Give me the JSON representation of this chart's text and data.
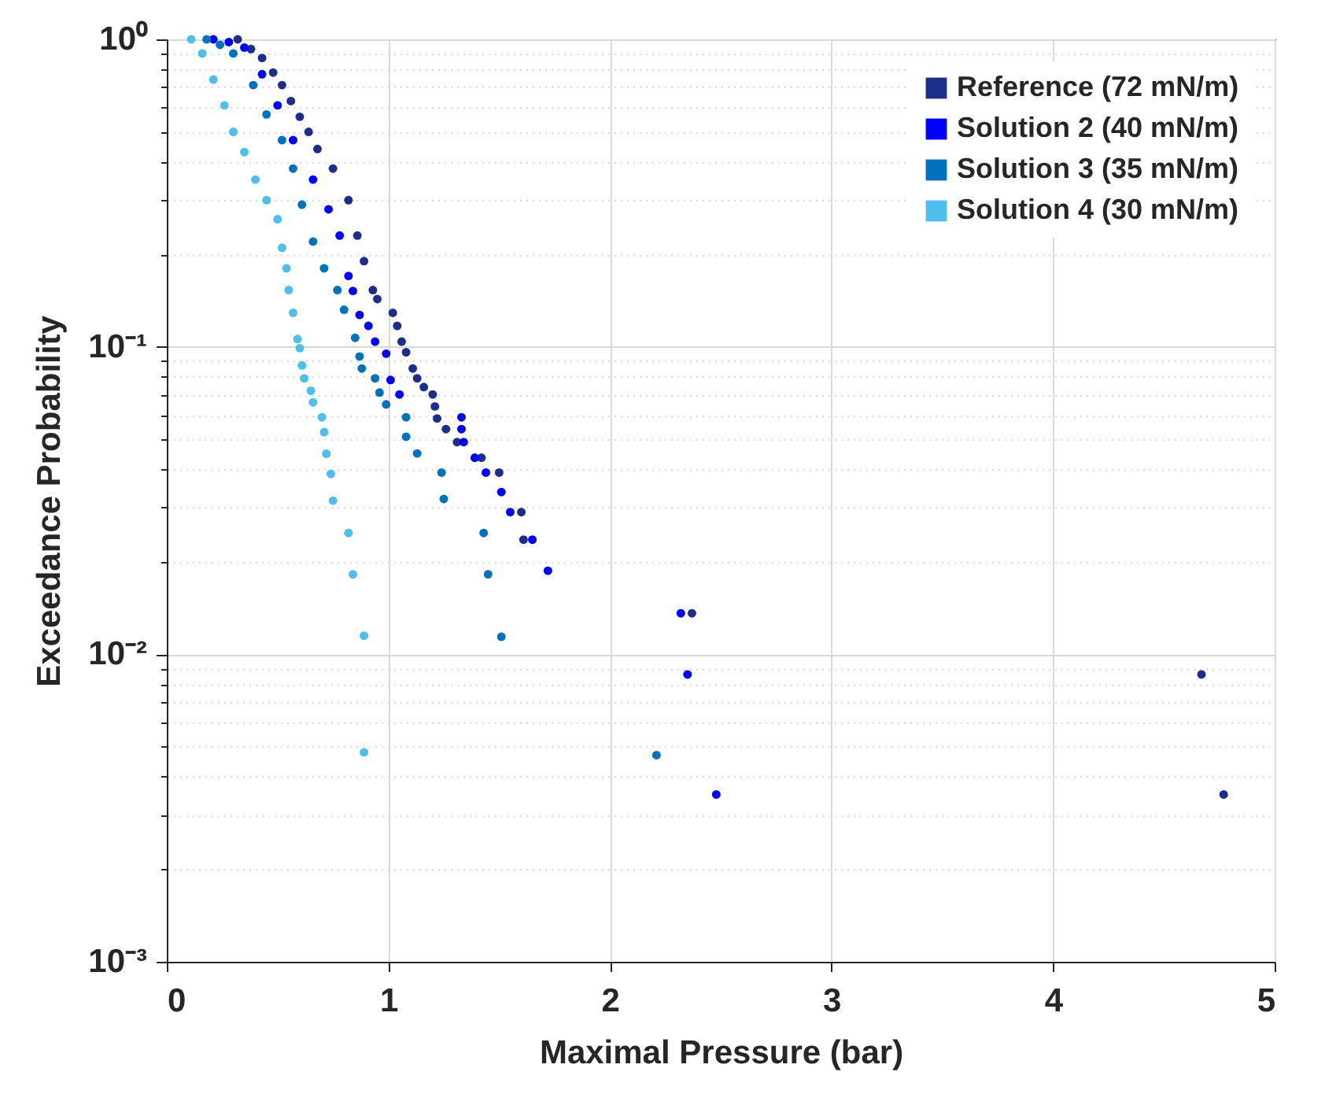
{
  "chart_data": {
    "type": "scatter",
    "xlabel": "Maximal Pressure (bar)",
    "ylabel": "Exceedance Probability",
    "log": "y",
    "grid": true,
    "legend": "top right",
    "marker": "circle",
    "xlim": [
      0,
      5
    ],
    "xticks": [
      0,
      1,
      2,
      3,
      4,
      5
    ],
    "ylim": [
      0.001,
      1
    ],
    "yticks": [
      {
        "value": 0.001,
        "label": "10⁻³"
      },
      {
        "value": 0.002,
        "label": null
      },
      {
        "value": 0.003,
        "label": null
      },
      {
        "value": 0.004,
        "label": null
      },
      {
        "value": 0.005,
        "label": null
      },
      {
        "value": 0.006,
        "label": null
      },
      {
        "value": 0.007,
        "label": null
      },
      {
        "value": 0.008,
        "label": null
      },
      {
        "value": 0.009,
        "label": null
      },
      {
        "value": 0.01,
        "label": "10⁻²"
      },
      {
        "value": 0.02,
        "label": null
      },
      {
        "value": 0.03,
        "label": null
      },
      {
        "value": 0.04,
        "label": null
      },
      {
        "value": 0.05,
        "label": null
      },
      {
        "value": 0.06,
        "label": null
      },
      {
        "value": 0.07,
        "label": null
      },
      {
        "value": 0.08,
        "label": null
      },
      {
        "value": 0.09,
        "label": null
      },
      {
        "value": 0.1,
        "label": "10⁻¹"
      },
      {
        "value": 0.2,
        "label": null
      },
      {
        "value": 0.3,
        "label": null
      },
      {
        "value": 0.4,
        "label": null
      },
      {
        "value": 0.5,
        "label": null
      },
      {
        "value": 0.6,
        "label": null
      },
      {
        "value": 0.7,
        "label": null
      },
      {
        "value": 0.8,
        "label": null
      },
      {
        "value": 0.9,
        "label": null
      },
      {
        "value": 1,
        "label": "10⁰"
      }
    ],
    "series": [
      {
        "name": "Reference (72 mN/m)",
        "color": "#1c2e8a",
        "x": [
          0.32,
          0.38,
          0.43,
          0.48,
          0.52,
          0.56,
          0.6,
          0.64,
          0.68,
          0.75,
          0.82,
          0.86,
          0.89,
          0.93,
          0.95,
          1.02,
          1.04,
          1.06,
          1.08,
          1.11,
          1.13,
          1.16,
          1.2,
          1.21,
          1.22,
          1.26,
          1.31,
          1.42,
          1.5,
          1.6,
          1.61,
          2.37,
          4.67,
          4.77
        ],
        "values": [
          1.0,
          0.93,
          0.87,
          0.78,
          0.71,
          0.63,
          0.56,
          0.5,
          0.44,
          0.38,
          0.3,
          0.23,
          0.19,
          0.153,
          0.143,
          0.129,
          0.117,
          0.104,
          0.096,
          0.085,
          0.079,
          0.074,
          0.07,
          0.064,
          0.0585,
          0.054,
          0.049,
          0.0436,
          0.039,
          0.029,
          0.0236,
          0.0136,
          0.0086,
          0.0035
        ]
      },
      {
        "name": "Solution 2 (40 mN/m)",
        "color": "#0000ff",
        "x": [
          0.21,
          0.28,
          0.35,
          0.43,
          0.5,
          0.57,
          0.66,
          0.73,
          0.78,
          0.82,
          0.84,
          0.87,
          0.91,
          0.94,
          0.99,
          1.01,
          1.05,
          1.33,
          1.33,
          1.34,
          1.39,
          1.44,
          1.51,
          1.55,
          1.65,
          1.72,
          2.32,
          2.35,
          2.48
        ],
        "values": [
          1.0,
          0.98,
          0.94,
          0.77,
          0.61,
          0.47,
          0.35,
          0.28,
          0.23,
          0.17,
          0.152,
          0.127,
          0.117,
          0.104,
          0.095,
          0.078,
          0.07,
          0.059,
          0.054,
          0.049,
          0.0436,
          0.039,
          0.0337,
          0.029,
          0.0236,
          0.0187,
          0.0136,
          0.0086,
          0.0035
        ]
      },
      {
        "name": "Solution 3 (35 mN/m)",
        "color": "#0072bd",
        "x": [
          0.18,
          0.24,
          0.3,
          0.39,
          0.45,
          0.52,
          0.57,
          0.61,
          0.66,
          0.71,
          0.77,
          0.8,
          0.85,
          0.87,
          0.88,
          0.94,
          0.96,
          0.99,
          1.08,
          1.08,
          1.13,
          1.24,
          1.25,
          1.43,
          1.45,
          1.51,
          2.21
        ],
        "values": [
          1.0,
          0.96,
          0.9,
          0.71,
          0.57,
          0.47,
          0.38,
          0.29,
          0.22,
          0.18,
          0.153,
          0.132,
          0.107,
          0.093,
          0.085,
          0.079,
          0.071,
          0.065,
          0.059,
          0.051,
          0.045,
          0.039,
          0.032,
          0.0248,
          0.0182,
          0.0114,
          0.0047
        ]
      },
      {
        "name": "Solution 4 (30 mN/m)",
        "color": "#4dbeee",
        "x": [
          0.11,
          0.16,
          0.21,
          0.26,
          0.3,
          0.35,
          0.4,
          0.45,
          0.5,
          0.52,
          0.54,
          0.55,
          0.57,
          0.59,
          0.6,
          0.61,
          0.62,
          0.65,
          0.66,
          0.7,
          0.71,
          0.72,
          0.74,
          0.75,
          0.82,
          0.84,
          0.89,
          0.89
        ],
        "values": [
          1.0,
          0.9,
          0.74,
          0.61,
          0.5,
          0.43,
          0.35,
          0.3,
          0.26,
          0.21,
          0.18,
          0.153,
          0.129,
          0.106,
          0.099,
          0.087,
          0.079,
          0.072,
          0.066,
          0.059,
          0.0528,
          0.0449,
          0.0386,
          0.0316,
          0.0248,
          0.0182,
          0.0115,
          0.0048
        ]
      }
    ]
  }
}
